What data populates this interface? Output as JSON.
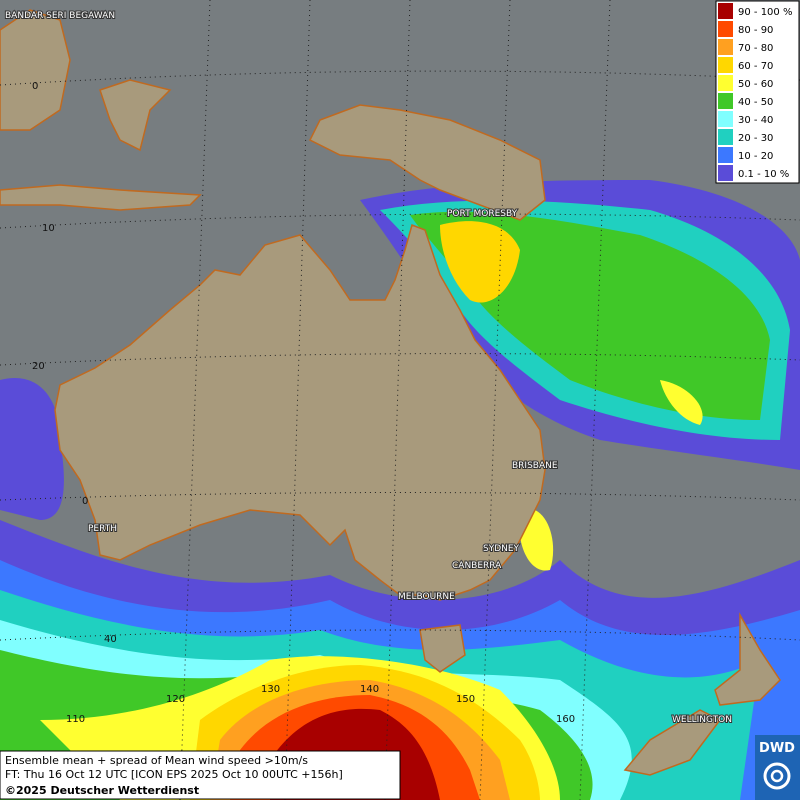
{
  "legend": {
    "items": [
      {
        "label": "90 - 100 %",
        "color": "#a80000"
      },
      {
        "label": "80 - 90",
        "color": "#ff4a00"
      },
      {
        "label": "70 - 80",
        "color": "#ffa020"
      },
      {
        "label": "60 - 70",
        "color": "#ffd700"
      },
      {
        "label": "50 - 60",
        "color": "#ffff30"
      },
      {
        "label": "40 - 50",
        "color": "#40c828"
      },
      {
        "label": "30 - 40",
        "color": "#80ffff"
      },
      {
        "label": "20 - 30",
        "color": "#20d0c0"
      },
      {
        "label": "10 - 20",
        "color": "#3c78ff"
      },
      {
        "label": "0.1 - 10 %",
        "color": "#5a4cd8"
      }
    ]
  },
  "cities": [
    "BANDAR SERI BEGAWAN",
    "PORT MORESBY",
    "BRISBANE",
    "PERTH",
    "SYDNEY",
    "CANBERRA",
    "MELBOURNE",
    "WELLINGTON"
  ],
  "grid_labels": {
    "latitude": [
      "0",
      "10",
      "20",
      "0",
      "40"
    ],
    "longitude": [
      "110",
      "120",
      "130",
      "140",
      "150",
      "160"
    ]
  },
  "footer": {
    "lines": [
      "Ensemble mean + spread of Mean wind speed >10m/s",
      "FT: Thu 16 Oct 12 UTC [ICON EPS 2025 Oct 10 00UTC +156h]"
    ],
    "copyright": "©2025 Deutscher Wetterdienst"
  },
  "logo": "DWD"
}
